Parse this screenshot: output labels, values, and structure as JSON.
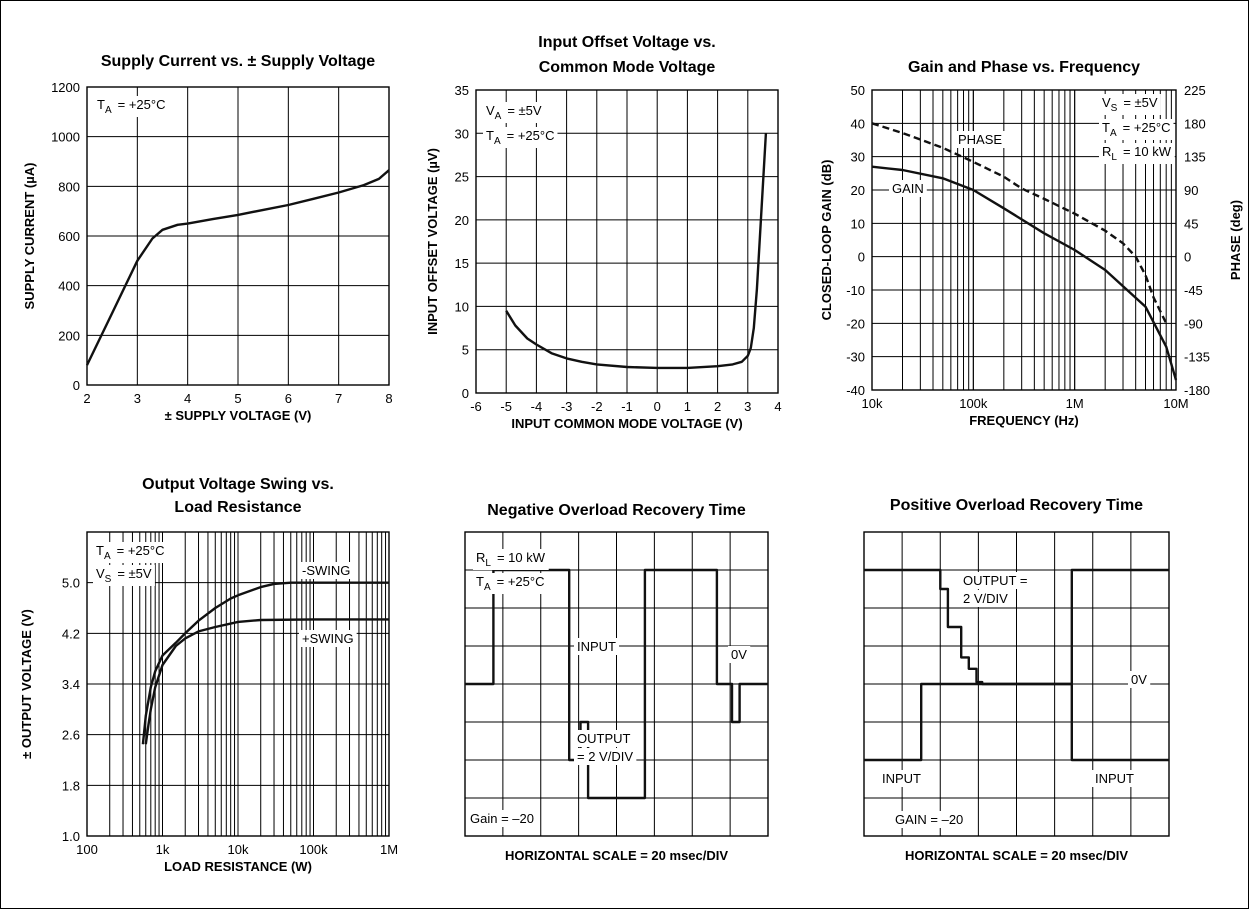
{
  "chart_data": [
    {
      "id": "c1",
      "type": "line",
      "title": "Supply Current vs. ± Supply Voltage",
      "xlabel": "± SUPPLY VOLTAGE (V)",
      "ylabel": "SUPPLY CURRENT (µA)",
      "xlim": [
        2,
        8
      ],
      "ylim": [
        0,
        1200
      ],
      "x_scale": "linear",
      "grid": true,
      "xticks": [
        "2",
        "3",
        "4",
        "5",
        "6",
        "7",
        "8"
      ],
      "yticks": [
        "0",
        "200",
        "400",
        "600",
        "800",
        "1000",
        "1200"
      ],
      "annotations": [
        {
          "main": "T",
          "sub": "A",
          "rest": "= +25°C"
        }
      ],
      "series": [
        {
          "x": [
            2,
            2.5,
            3,
            3.3,
            3.5,
            3.8,
            4,
            4.5,
            5,
            5.5,
            6,
            6.5,
            7,
            7.5,
            7.8,
            8
          ],
          "y": [
            80,
            290,
            500,
            590,
            625,
            645,
            650,
            668,
            685,
            705,
            725,
            750,
            775,
            805,
            830,
            865
          ]
        }
      ]
    },
    {
      "id": "c2",
      "type": "line",
      "title": [
        "Input Offset Voltage vs.",
        "Common Mode Voltage"
      ],
      "xlabel": "INPUT COMMON MODE VOLTAGE (V)",
      "ylabel": "INPUT OFFSET VOLTAGE (µV)",
      "xlim": [
        -6,
        4
      ],
      "ylim": [
        0,
        35
      ],
      "x_scale": "linear",
      "grid": true,
      "xticks": [
        "-6",
        "-5",
        "-4",
        "-3",
        "-2",
        "-1",
        "0",
        "1",
        "2",
        "3",
        "4"
      ],
      "yticks": [
        "0",
        "5",
        "10",
        "15",
        "20",
        "25",
        "30",
        "35"
      ],
      "annotations": [
        {
          "main": "V",
          "sub": "A",
          "rest": "= ±5V"
        },
        {
          "main": "T",
          "sub": "A",
          "rest": "= +25°C"
        }
      ],
      "series": [
        {
          "x": [
            -5,
            -4.7,
            -4.3,
            -4,
            -3.5,
            -3,
            -2.5,
            -2,
            -1,
            0,
            1,
            2,
            2.5,
            2.8,
            3,
            3.1,
            3.2,
            3.3,
            3.45,
            3.6
          ],
          "y": [
            9.5,
            7.8,
            6.3,
            5.6,
            4.6,
            4,
            3.6,
            3.3,
            3,
            2.9,
            2.9,
            3.1,
            3.3,
            3.6,
            4.3,
            5.2,
            7.5,
            12,
            21,
            30
          ]
        }
      ]
    },
    {
      "id": "c3",
      "type": "line",
      "title": "Gain and Phase vs. Frequency",
      "xlabel": "FREQUENCY (Hz)",
      "ylabel": "CLOSED-LOOP GAIN (dB)",
      "y2label": "PHASE (deg)",
      "xlim": [
        10000,
        10000000
      ],
      "ylim": [
        -40,
        50
      ],
      "y2lim": [
        -180,
        225
      ],
      "x_scale": "log",
      "grid": true,
      "xticks": [
        "10k",
        "100k",
        "1M",
        "10M"
      ],
      "yticks": [
        "-40",
        "-30",
        "-20",
        "-10",
        "0",
        "10",
        "20",
        "30",
        "40",
        "50"
      ],
      "y2ticks": [
        "-180",
        "-135",
        "-90",
        "-45",
        "0",
        "45",
        "90",
        "135",
        "180",
        "225"
      ],
      "annotations": [
        {
          "main": "V",
          "sub": "S",
          "rest": "= ±5V"
        },
        {
          "main": "T",
          "sub": "A",
          "rest": "= +25°C"
        },
        {
          "main": "R",
          "sub": "L",
          "rest": "= 10 kW"
        }
      ],
      "series": [
        {
          "name": "GAIN",
          "axis": "left",
          "style": "solid",
          "x": [
            10000,
            20000,
            50000,
            100000,
            200000,
            500000,
            1000000,
            2000000,
            5000000,
            8000000,
            10000000
          ],
          "y": [
            27,
            26,
            23.5,
            20,
            14.5,
            7,
            2,
            -4,
            -15,
            -27,
            -37
          ]
        },
        {
          "name": "PHASE",
          "axis": "right",
          "style": "dashed",
          "x": [
            10000,
            20000,
            50000,
            100000,
            200000,
            300000,
            500000,
            1000000,
            2000000,
            3000000,
            4000000,
            5000000,
            6000000,
            8000000
          ],
          "y": [
            180,
            167,
            147,
            128,
            108,
            92,
            78,
            58,
            35,
            18,
            0,
            -25,
            -55,
            -90
          ]
        }
      ]
    },
    {
      "id": "c4",
      "type": "line",
      "title": [
        "Output Voltage Swing vs.",
        "Load Resistance"
      ],
      "xlabel": "LOAD RESISTANCE (W)",
      "ylabel": "± OUTPUT VOLTAGE (V)",
      "xlim": [
        100,
        1000000
      ],
      "ylim": [
        1.0,
        5.8
      ],
      "x_scale": "log",
      "grid": true,
      "xticks": [
        "100",
        "1k",
        "10k",
        "100k",
        "1M"
      ],
      "yticks": [
        "1.0",
        "1.8",
        "2.6",
        "3.4",
        "4.2",
        "5.0"
      ],
      "ytick_values": [
        1.0,
        1.8,
        2.6,
        3.4,
        4.2,
        5.0
      ],
      "annotations": [
        {
          "main": "T",
          "sub": "A",
          "rest": "= +25°C"
        },
        {
          "main": "V",
          "sub": "S",
          "rest": "= ±5V"
        }
      ],
      "series": [
        {
          "name": "-SWING",
          "x": [
            550,
            600,
            700,
            800,
            1000,
            1500,
            2000,
            3000,
            5000,
            8000,
            10000,
            20000,
            30000,
            50000,
            1000000
          ],
          "y": [
            2.45,
            2.9,
            3.35,
            3.6,
            3.85,
            4.05,
            4.2,
            4.4,
            4.6,
            4.75,
            4.8,
            4.93,
            4.98,
            5.0,
            5.0
          ]
        },
        {
          "name": "+SWING",
          "x": [
            600,
            650,
            700,
            800,
            1000,
            1500,
            2000,
            3000,
            5000,
            10000,
            20000,
            100000,
            1000000
          ],
          "y": [
            2.45,
            2.75,
            3.0,
            3.35,
            3.7,
            4.0,
            4.12,
            4.23,
            4.3,
            4.38,
            4.41,
            4.42,
            4.42
          ]
        }
      ]
    },
    {
      "id": "c5",
      "type": "line",
      "title": "Negative Overload Recovery Time",
      "xlabel": "HORIZONTAL SCALE = 20 msec/DIV",
      "x_scale": "divisions",
      "grid": true,
      "divisions": [
        8,
        8
      ],
      "annotations": [
        {
          "main": "R",
          "sub": "L",
          "rest": "= 10 kW"
        },
        {
          "main": "T",
          "sub": "A",
          "rest": "= +25°C"
        }
      ],
      "labels": [
        "INPUT",
        "OUTPUT",
        "= 2 V/DIV",
        "0V",
        "Gain = –20"
      ],
      "series": [
        {
          "name": "INPUT/OUTPUT",
          "x": [
            0,
            0.75,
            0.75,
            2.75,
            2.75,
            3.05,
            3.05,
            3.25,
            3.25,
            4.75,
            4.75,
            6.65,
            6.65,
            7.05,
            7.05,
            7.25,
            7.25,
            8
          ],
          "y": [
            4,
            4,
            7,
            7,
            2,
            2,
            3,
            3,
            1,
            1,
            7,
            7,
            4,
            4,
            3,
            3,
            4,
            4
          ]
        }
      ]
    },
    {
      "id": "c6",
      "type": "line",
      "title": "Positive Overload Recovery Time",
      "xlabel": "HORIZONTAL SCALE = 20 msec/DIV",
      "x_scale": "divisions",
      "grid": true,
      "divisions": [
        8,
        8
      ],
      "labels": [
        "OUTPUT =",
        "2 V/DIV",
        "0V",
        "INPUT",
        "INPUT",
        "GAIN = –20"
      ],
      "series": [
        {
          "name": "INPUT",
          "x": [
            0,
            1.5,
            1.5,
            5.45,
            5.45,
            8
          ],
          "y": [
            2,
            2,
            4,
            4,
            2,
            2
          ]
        },
        {
          "name": "OUTPUT",
          "x": [
            0,
            2,
            2,
            2.2,
            2.2,
            2.55,
            2.55,
            2.75,
            2.75,
            2.95,
            2.95,
            3.1,
            3.1,
            5.45,
            5.45,
            8
          ],
          "y": [
            7,
            7,
            6.5,
            6.5,
            5.5,
            5.5,
            4.7,
            4.7,
            4.4,
            4.4,
            4.05,
            4.05,
            4,
            4,
            7,
            7
          ]
        }
      ]
    }
  ]
}
